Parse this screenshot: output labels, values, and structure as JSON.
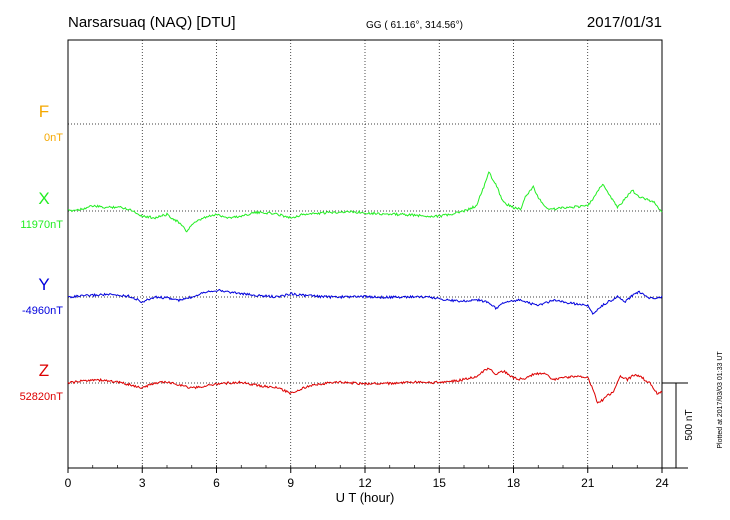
{
  "header": {
    "station": "Narsarsuaq (NAQ)  [DTU]",
    "coords": "GG ( 61.16°, 314.56°)",
    "date": "2017/01/31"
  },
  "footer": {
    "plotted": "Plotted at 2017/03/03 01:33 UT"
  },
  "chart_data": {
    "type": "line",
    "title": "Narsarsuaq (NAQ)  [DTU]",
    "xlabel": "U T (hour)",
    "xlim": [
      0,
      24
    ],
    "xticks": [
      "0",
      "3",
      "6",
      "9",
      "12",
      "15",
      "18",
      "21",
      "24"
    ],
    "grid": true,
    "scale_bar": {
      "label": "500 nT",
      "value": 500
    },
    "series": [
      {
        "name": "F",
        "baseline_label": "0nT",
        "color": "#f5a800",
        "x": [],
        "y": []
      },
      {
        "name": "X",
        "baseline_label": "11970nT",
        "color": "#22ee22",
        "x": [
          0,
          0.5,
          1,
          1.5,
          2,
          2.5,
          3,
          3.5,
          4,
          4.5,
          4.8,
          5,
          5.5,
          6,
          6.5,
          7,
          7.5,
          8,
          8.5,
          9,
          9.5,
          10,
          10.5,
          11,
          11.5,
          12,
          12.5,
          13,
          13.5,
          14,
          14.5,
          15,
          15.5,
          16,
          16.5,
          16.8,
          17,
          17.3,
          17.6,
          18,
          18.3,
          18.5,
          18.8,
          19,
          19.3,
          19.6,
          20,
          20.5,
          21,
          21.3,
          21.6,
          21.9,
          22.2,
          22.5,
          22.8,
          23.1,
          23.4,
          23.7,
          24
        ],
        "y": [
          11970,
          11980,
          12000,
          11990,
          11995,
          11980,
          11940,
          11930,
          11950,
          11900,
          11850,
          11890,
          11930,
          11950,
          11930,
          11940,
          11960,
          11960,
          11950,
          11930,
          11950,
          11955,
          11960,
          11965,
          11965,
          11960,
          11955,
          11950,
          11950,
          11945,
          11940,
          11940,
          11950,
          11970,
          12000,
          12110,
          12200,
          12120,
          12020,
          11990,
          11980,
          12060,
          12110,
          12050,
          11990,
          11980,
          11990,
          11995,
          12000,
          12060,
          12130,
          12060,
          11990,
          12040,
          12090,
          12050,
          12040,
          12020,
          11960
        ]
      },
      {
        "name": "Y",
        "baseline_label": "-4960nT",
        "color": "#0000dd",
        "x": [
          0,
          0.5,
          1,
          1.5,
          2,
          2.5,
          3,
          3.5,
          4,
          4.5,
          5,
          5.5,
          6,
          6.5,
          7,
          7.5,
          8,
          8.5,
          9,
          9.5,
          10,
          10.5,
          11,
          11.5,
          12,
          12.5,
          13,
          13.5,
          14,
          14.5,
          15,
          15.5,
          16,
          16.5,
          17,
          17.3,
          17.6,
          18,
          18.3,
          18.6,
          19,
          19.3,
          19.6,
          20,
          20.5,
          21,
          21.2,
          21.5,
          21.8,
          22.2,
          22.5,
          22.8,
          23.1,
          23.4,
          23.7,
          24
        ],
        "y": [
          -4960,
          -4955,
          -4950,
          -4945,
          -4950,
          -4955,
          -4990,
          -4960,
          -4965,
          -4980,
          -4960,
          -4930,
          -4920,
          -4930,
          -4940,
          -4950,
          -4955,
          -4960,
          -4940,
          -4950,
          -4955,
          -4960,
          -4960,
          -4958,
          -4958,
          -4960,
          -4962,
          -4960,
          -4958,
          -4960,
          -4970,
          -4980,
          -4985,
          -4975,
          -4990,
          -5030,
          -4990,
          -4985,
          -4975,
          -4995,
          -5010,
          -4995,
          -4980,
          -4990,
          -5000,
          -5010,
          -5060,
          -5020,
          -4990,
          -4960,
          -4990,
          -4950,
          -4930,
          -4960,
          -4970,
          -4960
        ]
      },
      {
        "name": "Z",
        "baseline_label": "52820nT",
        "color": "#dd0000",
        "x": [
          0,
          0.5,
          1,
          1.5,
          2,
          2.5,
          3,
          3.5,
          4,
          4.5,
          5,
          5.5,
          6,
          6.5,
          7,
          7.5,
          8,
          8.5,
          9,
          9.5,
          10,
          10.5,
          11,
          11.5,
          12,
          12.5,
          13,
          13.5,
          14,
          14.5,
          15,
          15.5,
          16,
          16.5,
          17,
          17.3,
          17.6,
          18,
          18.4,
          18.8,
          19.2,
          19.6,
          20,
          20.5,
          21,
          21.2,
          21.4,
          21.6,
          21.8,
          22,
          22.3,
          22.6,
          22.9,
          23.2,
          23.5,
          23.8,
          24
        ],
        "y": [
          52820,
          52830,
          52840,
          52835,
          52825,
          52810,
          52790,
          52820,
          52825,
          52810,
          52790,
          52800,
          52815,
          52820,
          52825,
          52810,
          52800,
          52790,
          52760,
          52790,
          52810,
          52820,
          52825,
          52820,
          52815,
          52818,
          52818,
          52820,
          52825,
          52820,
          52825,
          52830,
          52840,
          52860,
          52910,
          52870,
          52890,
          52850,
          52840,
          52870,
          52880,
          52840,
          52850,
          52860,
          52850,
          52790,
          52700,
          52720,
          52750,
          52760,
          52860,
          52840,
          52870,
          52850,
          52820,
          52760,
          52770
        ]
      }
    ]
  }
}
